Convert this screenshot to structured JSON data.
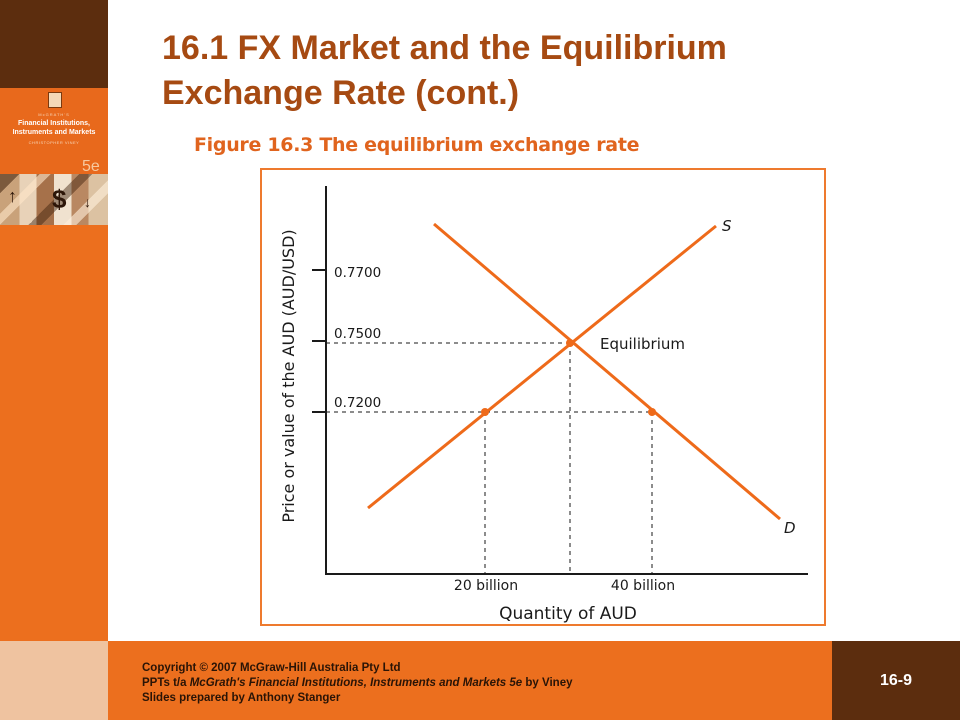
{
  "slide": {
    "title_line1": "16.1   FX Market and the Equilibrium",
    "title_line2": "Exchange Rate (cont.)",
    "slide_number": "16-9"
  },
  "book_cover": {
    "series": "McGRATH'S",
    "title_line1": "Financial Institutions,",
    "title_line2": "Instruments and Markets",
    "author": "CHRISTOPHER VINEY",
    "edition": "5e"
  },
  "figure": {
    "caption": "Figure 16.3 The equilibrium exchange rate",
    "ylabel": "Price or value of the AUD (AUD/USD)",
    "xlabel": "Quantity of AUD",
    "y_ticks": [
      "0.7700",
      "0.7500",
      "0.7200"
    ],
    "x_ticks": [
      "20 billion",
      "40 billion"
    ],
    "supply_label": "S",
    "demand_label": "D",
    "equilibrium_label": "Equilibrium"
  },
  "colors": {
    "accent": "#ec6f1e",
    "title": "#a64a12",
    "dark_brown": "#5c2d0e",
    "line": "#ee6a1a"
  },
  "footer": {
    "line1": "Copyright © 2007 McGraw-Hill Australia Pty Ltd",
    "line2_prefix": "PPTs t/a ",
    "line2_italic": "McGrath's Financial Institutions, Instruments and Markets 5e",
    "line2_suffix": " by Viney",
    "line3": "Slides prepared by Anthony  Stanger"
  }
}
